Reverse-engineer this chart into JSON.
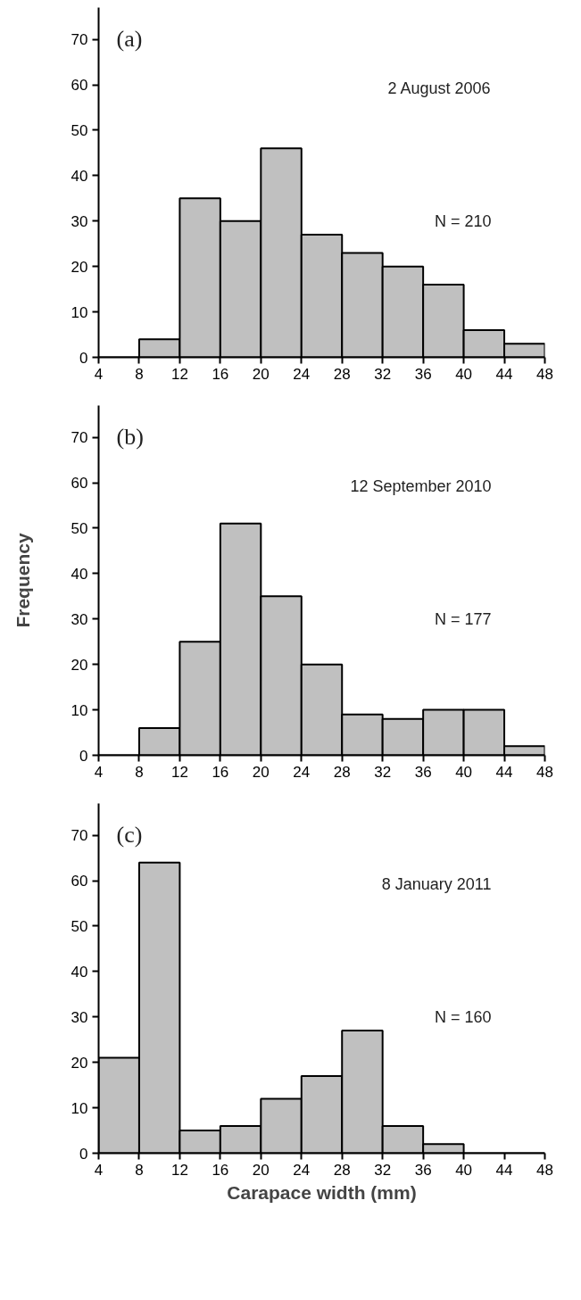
{
  "chart_data": [
    {
      "type": "histogram",
      "bins": [
        4,
        8,
        12,
        16,
        20,
        24,
        28,
        32,
        36,
        40,
        44,
        48
      ],
      "values": [
        0,
        4,
        35,
        30,
        46,
        27,
        23,
        20,
        16,
        6,
        3
      ],
      "color": "#c0c0c0",
      "xlim": [
        4,
        48
      ],
      "xticks": [
        4,
        8,
        12,
        16,
        20,
        24,
        28,
        32,
        36,
        40,
        44,
        48
      ],
      "ylim": [
        0,
        77
      ],
      "yticks": [
        0,
        10,
        20,
        30,
        40,
        50,
        60,
        70
      ],
      "annotations": [
        "(a)",
        "2 August 2006",
        "N = 210"
      ]
    },
    {
      "type": "histogram",
      "bins": [
        4,
        8,
        12,
        16,
        20,
        24,
        28,
        32,
        36,
        40,
        44,
        48
      ],
      "values": [
        0,
        6,
        25,
        51,
        35,
        20,
        9,
        8,
        10,
        10,
        2
      ],
      "color": "#c0c0c0",
      "xlim": [
        4,
        48
      ],
      "xticks": [
        4,
        8,
        12,
        16,
        20,
        24,
        28,
        32,
        36,
        40,
        44,
        48
      ],
      "ylim": [
        0,
        77
      ],
      "yticks": [
        0,
        10,
        20,
        30,
        40,
        50,
        60,
        70
      ],
      "ylabel": "Frequency",
      "annotations": [
        "(b)",
        "12 September 2010",
        "N = 177"
      ]
    },
    {
      "type": "histogram",
      "bins": [
        4,
        8,
        12,
        16,
        20,
        24,
        28,
        32,
        36,
        40,
        44,
        48
      ],
      "values": [
        21,
        64,
        5,
        6,
        12,
        17,
        27,
        6,
        2,
        0,
        0
      ],
      "color": "#c0c0c0",
      "xlim": [
        4,
        48
      ],
      "xticks": [
        4,
        8,
        12,
        16,
        20,
        24,
        28,
        32,
        36,
        40,
        44,
        48
      ],
      "ylim": [
        0,
        77
      ],
      "yticks": [
        0,
        10,
        20,
        30,
        40,
        50,
        60,
        70
      ],
      "xlabel": "Carapace width (mm)",
      "annotations": [
        "(c)",
        "8 January 2011",
        "N = 160"
      ]
    }
  ]
}
